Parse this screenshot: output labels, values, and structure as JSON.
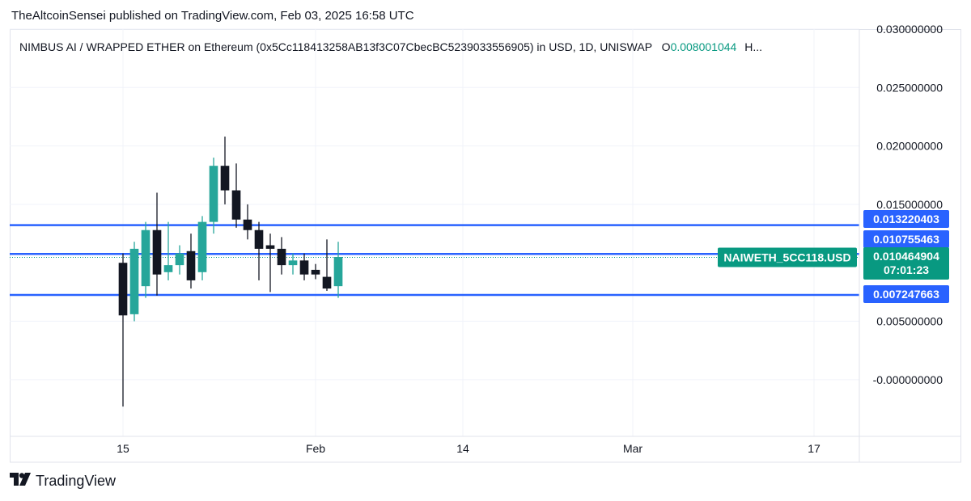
{
  "publisher": "TheAltcoinSensei published on TradingView.com, Feb 03, 2025 16:58 UTC",
  "header": {
    "title": "NIMBUS AI / WRAPPED ETHER on Ethereum (0x5Cc118413258AB13f3C07CbecBC5239033556905) in USD, 1D, UNISWAP",
    "open_label": "O",
    "open_value": "0.008001044",
    "high_label": "H..."
  },
  "footer": {
    "brand": "TradingView",
    "logo_icon": "tradingview-logo-icon"
  },
  "colors": {
    "up": "#26a69a",
    "down": "#131722",
    "level": "#2962ff",
    "badge_green": "#089981",
    "grid": "#f0f3fa"
  },
  "chart_data": {
    "type": "candlestick",
    "symbol_label": "NAIWETH_5CC118.USD",
    "ylim": [
      -0.0025,
      0.03
    ],
    "y_ticks": [
      "0.030000000",
      "0.025000000",
      "0.020000000",
      "0.015000000",
      "0.005000000",
      "-0.000000000"
    ],
    "x_ticks": [
      "15",
      "Feb",
      "14",
      "Mar",
      "17"
    ],
    "date_range": [
      "2025-01-05",
      "2025-03-21"
    ],
    "x_tick_dates": [
      "2025-01-15",
      "2025-02-01",
      "2025-02-14",
      "2025-03-01",
      "2025-03-17"
    ],
    "levels": [
      {
        "value": 0.013220403,
        "label": "0.013220403"
      },
      {
        "value": 0.010755463,
        "label": "0.010755463"
      },
      {
        "value": 0.007247663,
        "label": "0.007247663"
      }
    ],
    "price_line": {
      "value": 0.010464904,
      "label": "0.010464904",
      "countdown": "07:01:23"
    },
    "candles": [
      {
        "date": "2025-01-15",
        "o": 0.01,
        "h": 0.0108,
        "l": -0.0023,
        "c": 0.0055
      },
      {
        "date": "2025-01-16",
        "o": 0.0056,
        "h": 0.0118,
        "l": 0.005,
        "c": 0.0112
      },
      {
        "date": "2025-01-17",
        "o": 0.008,
        "h": 0.0135,
        "l": 0.007,
        "c": 0.0128
      },
      {
        "date": "2025-01-18",
        "o": 0.0128,
        "h": 0.016,
        "l": 0.0072,
        "c": 0.009
      },
      {
        "date": "2025-01-19",
        "o": 0.0092,
        "h": 0.0135,
        "l": 0.0085,
        "c": 0.0098
      },
      {
        "date": "2025-01-20",
        "o": 0.0098,
        "h": 0.0115,
        "l": 0.009,
        "c": 0.0108
      },
      {
        "date": "2025-01-21",
        "o": 0.011,
        "h": 0.0125,
        "l": 0.0078,
        "c": 0.0085
      },
      {
        "date": "2025-01-22",
        "o": 0.0092,
        "h": 0.014,
        "l": 0.0085,
        "c": 0.0135
      },
      {
        "date": "2025-01-23",
        "o": 0.0135,
        "h": 0.019,
        "l": 0.0125,
        "c": 0.0183
      },
      {
        "date": "2025-01-24",
        "o": 0.0183,
        "h": 0.0208,
        "l": 0.015,
        "c": 0.0162
      },
      {
        "date": "2025-01-25",
        "o": 0.0162,
        "h": 0.0185,
        "l": 0.013,
        "c": 0.0137
      },
      {
        "date": "2025-01-26",
        "o": 0.0137,
        "h": 0.015,
        "l": 0.012,
        "c": 0.0128
      },
      {
        "date": "2025-01-27",
        "o": 0.0128,
        "h": 0.0135,
        "l": 0.0085,
        "c": 0.0112
      },
      {
        "date": "2025-01-28",
        "o": 0.0115,
        "h": 0.0125,
        "l": 0.0075,
        "c": 0.0112
      },
      {
        "date": "2025-01-29",
        "o": 0.0112,
        "h": 0.0122,
        "l": 0.009,
        "c": 0.0098
      },
      {
        "date": "2025-01-30",
        "o": 0.0098,
        "h": 0.0108,
        "l": 0.009,
        "c": 0.0102
      },
      {
        "date": "2025-01-31",
        "o": 0.0102,
        "h": 0.0108,
        "l": 0.0085,
        "c": 0.009
      },
      {
        "date": "2025-02-01",
        "o": 0.0094,
        "h": 0.0099,
        "l": 0.0086,
        "c": 0.009
      },
      {
        "date": "2025-02-02",
        "o": 0.0088,
        "h": 0.012,
        "l": 0.0076,
        "c": 0.0078
      },
      {
        "date": "2025-02-03",
        "o": 0.008,
        "h": 0.0118,
        "l": 0.007,
        "c": 0.0105
      }
    ]
  }
}
